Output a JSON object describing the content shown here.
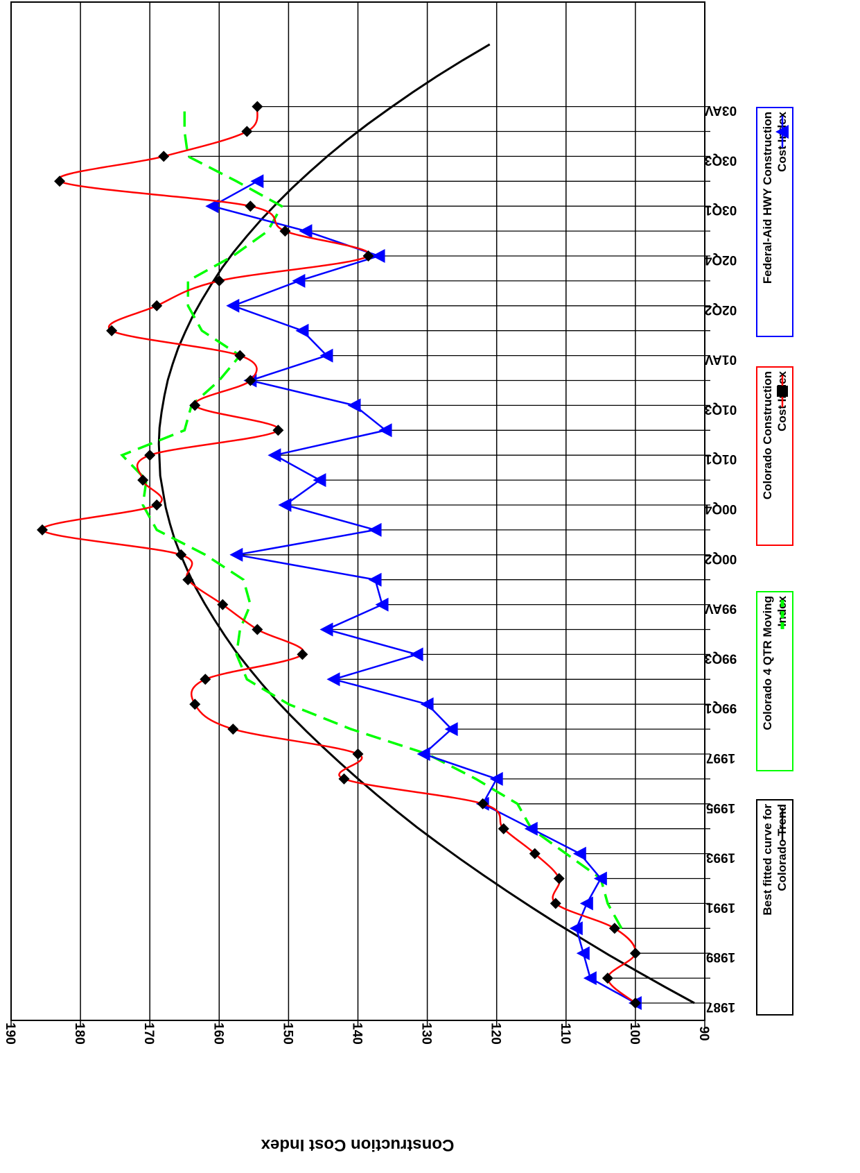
{
  "chart_data": {
    "type": "line",
    "orientation": "rotated-90",
    "ylabel": "Construction Cost Index",
    "ylim": [
      90,
      190
    ],
    "yticks": [
      90,
      100,
      110,
      120,
      130,
      140,
      150,
      160,
      170,
      180,
      190
    ],
    "x_tick_labels": [
      "1987",
      "1989",
      "1991",
      "1993",
      "1995",
      "1997",
      "99Q1",
      "99Q3",
      "99AV",
      "00Q2",
      "00Q4",
      "01Q1",
      "01Q3",
      "01AV",
      "02Q2",
      "02Q4",
      "03Q1",
      "03Q3",
      "03AV"
    ],
    "legend": [
      {
        "text": "Best fitted curve for Colorado Trend",
        "color": "#000000",
        "style": "solid"
      },
      {
        "text": "Colorado 4 QTR Moving Index",
        "color": "#00ff00",
        "style": "dashed"
      },
      {
        "text": "Colorado Construction Cost  Index",
        "color": "#ff0000",
        "style": "solid-diamond"
      },
      {
        "text": "Federal-Aid HWY Construction Cost Index",
        "color": "#0000ff",
        "style": "solid-triangle"
      }
    ],
    "series": [
      {
        "key": "colorado",
        "color": "#ff0000",
        "marker_color": "#000000",
        "values": [
          100,
          104,
          100,
          103,
          111.5,
          111,
          114.5,
          119,
          122,
          142,
          140,
          158,
          163.5,
          162,
          148,
          154.5,
          159.5,
          164.5,
          165.5,
          185.5,
          169,
          171,
          170,
          151.5,
          163.5,
          155.5,
          157,
          175.5,
          169,
          160,
          138.5,
          150.5,
          155.5,
          183,
          168,
          156,
          154.5
        ]
      },
      {
        "key": "federal",
        "color": "#0000ff",
        "values": [
          100,
          106.5,
          107.5,
          108.5,
          107,
          105,
          108,
          115,
          122,
          120,
          130.5,
          126.5,
          130,
          143.5,
          131.5,
          144.5,
          136.5,
          137.5,
          157.5,
          137.5,
          150.5,
          145.5,
          152,
          136,
          140.5,
          155.5,
          144.5,
          148,
          158,
          148.5,
          137,
          147.5,
          161,
          154.5
        ]
      },
      {
        "key": "moving",
        "color": "#00ff00",
        "values": [
          null,
          null,
          null,
          102,
          104,
          105,
          110,
          115,
          117,
          123,
          130,
          141,
          150,
          156,
          157.5,
          157,
          155.5,
          156.5,
          162,
          169,
          171,
          170.5,
          174,
          165,
          164,
          160,
          157,
          162.5,
          164.5,
          164.5,
          158,
          153,
          151,
          157.5,
          164.5,
          165,
          165
        ]
      },
      {
        "key": "trend",
        "color": "#000000",
        "x_end": 38.5,
        "values": [
          91.5,
          95.7,
          99.8,
          103.8,
          107.6,
          111.4,
          115,
          118.5,
          121.9,
          125.2,
          128.4,
          131.5,
          134.4,
          137.2,
          139.9,
          142.5,
          145,
          147.4,
          149.7,
          151.9,
          153.9,
          155.8,
          157.6,
          159.2,
          160.7,
          162.1,
          163.4,
          164.5,
          165.5,
          166.4,
          167.1,
          167.7,
          168.1,
          168.5,
          168.6,
          168.7,
          168.6,
          168.3,
          167.9,
          167.4,
          166.7,
          165.9,
          164.9,
          163.8,
          162.5,
          161.1,
          159.6,
          157.9,
          156,
          154,
          151.8,
          149.5,
          147,
          144.4,
          141.6,
          138.6,
          135.4,
          132.1,
          128.6,
          124.9,
          121
        ]
      }
    ]
  }
}
